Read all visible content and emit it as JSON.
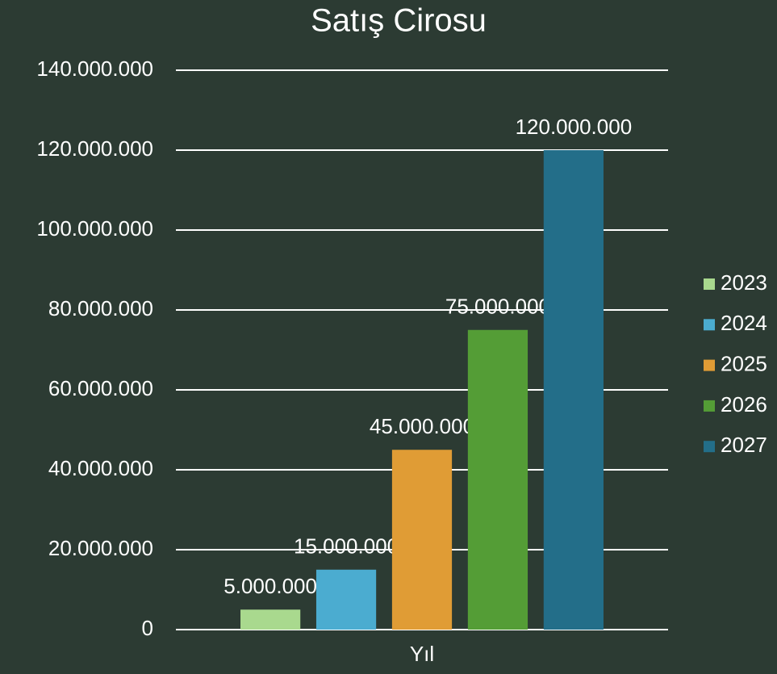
{
  "chart_data": {
    "type": "bar",
    "title": "Satış Cirosu",
    "categories": [
      "Yıl"
    ],
    "series": [
      {
        "name": "2023",
        "color": "#a9d98e",
        "values": [
          5000000
        ],
        "value_labels": [
          "5.000.000"
        ]
      },
      {
        "name": "2024",
        "color": "#4bacd0",
        "values": [
          15000000
        ],
        "value_labels": [
          "15.000.000"
        ]
      },
      {
        "name": "2025",
        "color": "#e09c35",
        "values": [
          45000000
        ],
        "value_labels": [
          "45.000.000"
        ]
      },
      {
        "name": "2026",
        "color": "#549d36",
        "values": [
          75000000
        ],
        "value_labels": [
          "75.000.000"
        ]
      },
      {
        "name": "2027",
        "color": "#236e89",
        "values": [
          120000000
        ],
        "value_labels": [
          "120.000.000"
        ]
      }
    ],
    "ylim": [
      0,
      140000000
    ],
    "yticks": [
      0,
      {
        "value": 20000000,
        "label": "20.000.000"
      },
      {
        "value": 40000000,
        "label": "40.000.000"
      },
      {
        "value": 60000000,
        "label": "60.000.000"
      },
      {
        "value": 80000000,
        "label": "80.000.000"
      },
      {
        "value": 100000000,
        "label": "100.000.000"
      },
      {
        "value": 120000000,
        "label": "120.000.000"
      },
      {
        "value": 140000000,
        "label": "140.000.000"
      }
    ],
    "grid": true,
    "legend": "right"
  }
}
